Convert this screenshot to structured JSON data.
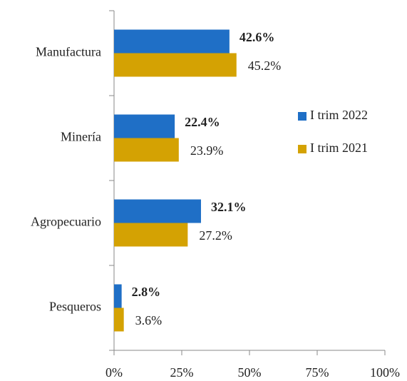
{
  "chart_data": {
    "type": "hbar",
    "categories": [
      "Manufactura",
      "Minería",
      "Agropecuario",
      "Pesqueros"
    ],
    "series": [
      {
        "name": "I trim 2022",
        "color": "#1f6fc6",
        "values": [
          42.6,
          22.4,
          32.1,
          2.8
        ],
        "value_labels": [
          "42.6%",
          "22.4%",
          "32.1%",
          "2.8%"
        ]
      },
      {
        "name": "I trim 2021",
        "color": "#d4a203",
        "values": [
          45.2,
          23.9,
          27.2,
          3.6
        ],
        "value_labels": [
          "45.2%",
          "23.9%",
          "27.2%",
          "3.6%"
        ]
      }
    ],
    "xlim": [
      0,
      100
    ],
    "xticks": [
      {
        "value": 0,
        "label": "0%"
      },
      {
        "value": 25,
        "label": "25%"
      },
      {
        "value": 50,
        "label": "50%"
      },
      {
        "value": 75,
        "label": "75%"
      },
      {
        "value": 100,
        "label": "100%"
      }
    ],
    "legend": "right"
  }
}
